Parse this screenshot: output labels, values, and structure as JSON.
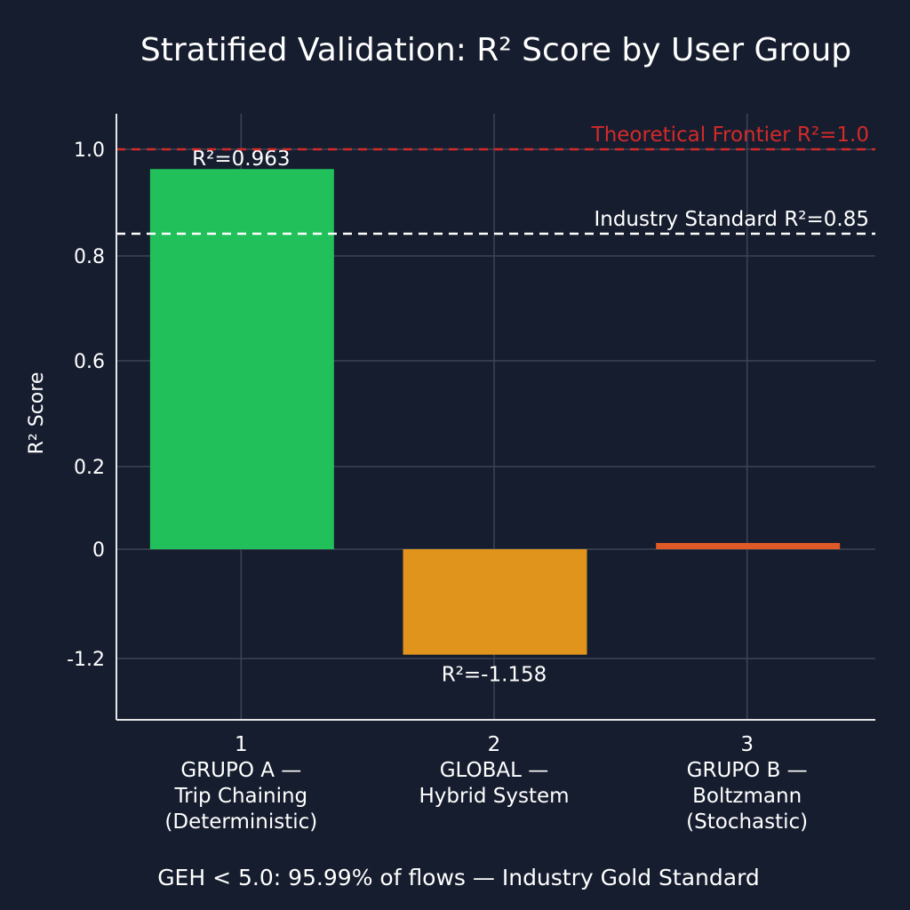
{
  "chart_data": {
    "type": "bar",
    "title": "Stratified Validation: R² Score by User Group",
    "ylabel": "R² Score",
    "xlabel": "",
    "categories": [
      {
        "index": "1",
        "lines": [
          "GRUPO A —",
          "Trip Chaining",
          "(Deterministic)"
        ]
      },
      {
        "index": "2",
        "lines": [
          "GLOBAL —",
          "Hybrid System"
        ]
      },
      {
        "index": "3",
        "lines": [
          "GRUPO B —",
          "Boltzmann",
          "(Stochastic)"
        ]
      }
    ],
    "values": [
      0.963,
      -1.158,
      0.015
    ],
    "data_labels": [
      "R²=0.963",
      "R²=-1.158",
      ""
    ],
    "colors": [
      "#22c05a",
      "#e0941c",
      "#e05a28"
    ],
    "y_ticks": [
      1.0,
      0.8,
      0.6,
      0.2,
      0,
      -1.2
    ],
    "y_tick_labels": [
      "1.0",
      "0.8",
      "0.6",
      "0.2",
      "0",
      "-1.2"
    ],
    "grid": true,
    "reference_lines": [
      {
        "value": 1.0,
        "label": "Theoretical Frontier R²=1.0",
        "color": "#d42a2a",
        "style": "dashed"
      },
      {
        "value": 0.85,
        "label": "Industry Standard R²=0.85",
        "color": "#ffffff",
        "style": "dashed"
      }
    ],
    "footnote": "GEH < 5.0: 95.99% of flows — Industry Gold Standard"
  }
}
